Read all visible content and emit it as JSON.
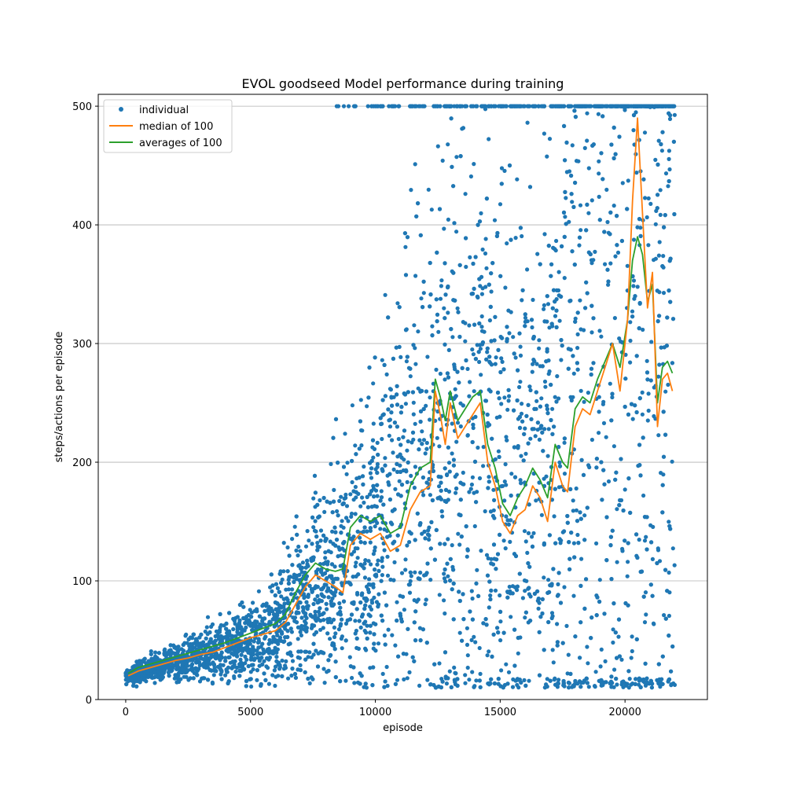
{
  "chart_data": {
    "type": "scatter",
    "title": "EVOL goodseed Model performance during training",
    "xlabel": "episode",
    "ylabel": "steps/actions per episode",
    "xlim": [
      -1100,
      23300
    ],
    "ylim": [
      0,
      510
    ],
    "xticks": [
      0,
      5000,
      10000,
      15000,
      20000
    ],
    "yticks": [
      0,
      100,
      200,
      300,
      400,
      500
    ],
    "x_tick_labels": [
      "0",
      "5000",
      "10000",
      "15000",
      "20000"
    ],
    "y_tick_labels": [
      "0",
      "100",
      "200",
      "300",
      "400",
      "500"
    ],
    "grid": "horizontal",
    "legend": "top-left",
    "colors": {
      "individual": "#1f77b4",
      "median": "#ff7f0e",
      "average": "#2ca02c",
      "grid": "#b0b0b0"
    },
    "series": [
      {
        "name": "individual",
        "kind": "points",
        "episodes": 22000,
        "note_trend_x": [
          0,
          2000,
          4000,
          6000,
          8000,
          10000,
          12000,
          14000,
          16000,
          18000,
          20000,
          22000
        ],
        "note_trend_y": [
          20,
          32,
          42,
          58,
          100,
          140,
          200,
          240,
          170,
          250,
          330,
          270
        ],
        "max_value": 500
      },
      {
        "name": "median of 100",
        "kind": "line",
        "x": [
          100,
          500,
          1000,
          1500,
          2000,
          2500,
          3000,
          3500,
          4000,
          4500,
          5000,
          5500,
          6000,
          6400,
          6800,
          7200,
          7600,
          8000,
          8400,
          8700,
          9000,
          9400,
          9800,
          10200,
          10600,
          11000,
          11400,
          11800,
          12200,
          12400,
          12600,
          12800,
          13000,
          13300,
          13600,
          13900,
          14200,
          14500,
          14800,
          15100,
          15400,
          15700,
          16000,
          16300,
          16600,
          16900,
          17200,
          17500,
          17700,
          18000,
          18300,
          18600,
          18900,
          19200,
          19500,
          19800,
          20100,
          20300,
          20500,
          20700,
          20900,
          21100,
          21300,
          21500,
          21700,
          21900
        ],
        "y": [
          20,
          24,
          27,
          30,
          33,
          35,
          38,
          40,
          44,
          48,
          52,
          55,
          58,
          65,
          80,
          95,
          105,
          100,
          95,
          90,
          130,
          140,
          135,
          140,
          125,
          130,
          160,
          175,
          180,
          260,
          240,
          215,
          250,
          220,
          230,
          240,
          250,
          200,
          180,
          150,
          140,
          155,
          160,
          180,
          170,
          150,
          200,
          180,
          175,
          230,
          245,
          240,
          260,
          280,
          300,
          260,
          320,
          420,
          490,
          410,
          330,
          360,
          230,
          270,
          275,
          260
        ]
      },
      {
        "name": "averages of 100",
        "kind": "line",
        "x": [
          100,
          500,
          1000,
          1500,
          2000,
          2500,
          3000,
          3500,
          4000,
          4500,
          5000,
          5500,
          6000,
          6400,
          6800,
          7200,
          7600,
          8000,
          8400,
          8700,
          9000,
          9400,
          9800,
          10200,
          10600,
          11000,
          11400,
          11800,
          12200,
          12400,
          12600,
          12800,
          13000,
          13300,
          13600,
          13900,
          14200,
          14500,
          14800,
          15100,
          15400,
          15700,
          16000,
          16300,
          16600,
          16900,
          17200,
          17500,
          17700,
          18000,
          18300,
          18600,
          18900,
          19200,
          19500,
          19800,
          20100,
          20300,
          20500,
          20700,
          20900,
          21100,
          21300,
          21500,
          21700,
          21900
        ],
        "y": [
          22,
          27,
          30,
          33,
          36,
          39,
          42,
          45,
          48,
          52,
          56,
          60,
          64,
          72,
          90,
          105,
          115,
          110,
          108,
          110,
          145,
          155,
          150,
          155,
          140,
          145,
          180,
          195,
          200,
          270,
          255,
          235,
          260,
          235,
          245,
          255,
          260,
          215,
          195,
          165,
          155,
          170,
          180,
          195,
          185,
          170,
          215,
          200,
          195,
          245,
          255,
          250,
          270,
          285,
          300,
          280,
          320,
          370,
          390,
          375,
          335,
          350,
          250,
          280,
          285,
          275
        ]
      }
    ]
  }
}
